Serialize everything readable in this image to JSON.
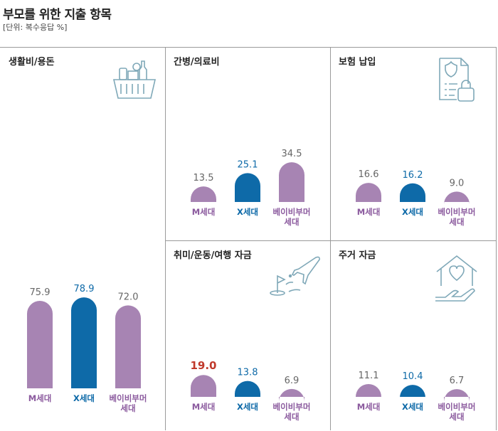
{
  "title": "부모를 위한 지출 항목",
  "unit_note": "[단위: 복수응답 %]",
  "colors": {
    "m": "#a784b3",
    "x": "#0e6aa8",
    "boomer": "#a784b3",
    "highlight": "#c0392b",
    "axis_text_m": "#8b5a9e",
    "axis_text_x": "#0e6aa8"
  },
  "chart_data": [
    {
      "type": "bar",
      "title": "생활비/용돈",
      "icon": "grocery-basket-icon",
      "categories": [
        "M세대",
        "X세대",
        "베이비부머\n세대"
      ],
      "values": [
        75.9,
        78.9,
        72.0
      ],
      "labels": [
        "75.9",
        "78.9",
        "72.0"
      ],
      "ylim": [
        0,
        100
      ],
      "highlight": -1
    },
    {
      "type": "bar",
      "title": "간병/의료비",
      "icon": "medical-bottle-icon",
      "categories": [
        "M세대",
        "X세대",
        "베이비부머\n세대"
      ],
      "values": [
        13.5,
        25.1,
        34.5
      ],
      "labels": [
        "13.5",
        "25.1",
        "34.5"
      ],
      "ylim": [
        0,
        100
      ],
      "highlight": -1
    },
    {
      "type": "bar",
      "title": "보험 납입",
      "icon": "insurance-document-icon",
      "categories": [
        "M세대",
        "X세대",
        "베이비부머\n세대"
      ],
      "values": [
        16.6,
        16.2,
        9.0
      ],
      "labels": [
        "16.6",
        "16.2",
        "9.0"
      ],
      "ylim": [
        0,
        100
      ],
      "highlight": -1
    },
    {
      "type": "bar",
      "title": "취미/운동/여행 자금",
      "icon": "airplane-golf-icon",
      "categories": [
        "M세대",
        "X세대",
        "베이비부머\n세대"
      ],
      "values": [
        19.0,
        13.8,
        6.9
      ],
      "labels": [
        "19.0",
        "13.8",
        "6.9"
      ],
      "ylim": [
        0,
        100
      ],
      "highlight": 0
    },
    {
      "type": "bar",
      "title": "주거 자금",
      "icon": "house-heart-icon",
      "categories": [
        "M세대",
        "X세대",
        "베이비부머\n세대"
      ],
      "values": [
        11.1,
        10.4,
        6.7
      ],
      "labels": [
        "11.1",
        "10.4",
        "6.7"
      ],
      "ylim": [
        0,
        100
      ],
      "highlight": -1
    }
  ]
}
